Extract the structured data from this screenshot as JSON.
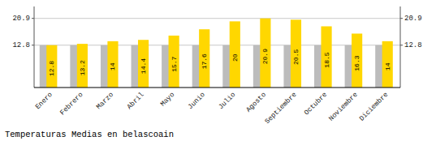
{
  "chart_data": {
    "type": "bar",
    "title": "Temperaturas Medias en belascoain",
    "categories": [
      "Enero",
      "Febrero",
      "Marzo",
      "Abril",
      "Mayo",
      "Junio",
      "Julio",
      "Agosto",
      "Septiembre",
      "Octubre",
      "Noviembre",
      "Diciembre"
    ],
    "series": [
      {
        "color": "#BCBCBC",
        "values": [
          12.8,
          12.8,
          12.8,
          12.8,
          12.8,
          12.8,
          12.8,
          12.8,
          12.8,
          12.8,
          12.8,
          12.8
        ]
      },
      {
        "color": "#FFD700",
        "data_labels": true,
        "values": [
          12.8,
          13.2,
          14.0,
          14.4,
          15.7,
          17.6,
          20.0,
          20.9,
          20.5,
          18.5,
          16.3,
          14.0
        ]
      }
    ],
    "ylim": [
      0,
      24.5
    ],
    "yticks": [
      12.8,
      20.9
    ],
    "y2lim": [
      0,
      24.5
    ],
    "y2ticks": [
      12.8,
      20.9
    ],
    "grid": true
  }
}
